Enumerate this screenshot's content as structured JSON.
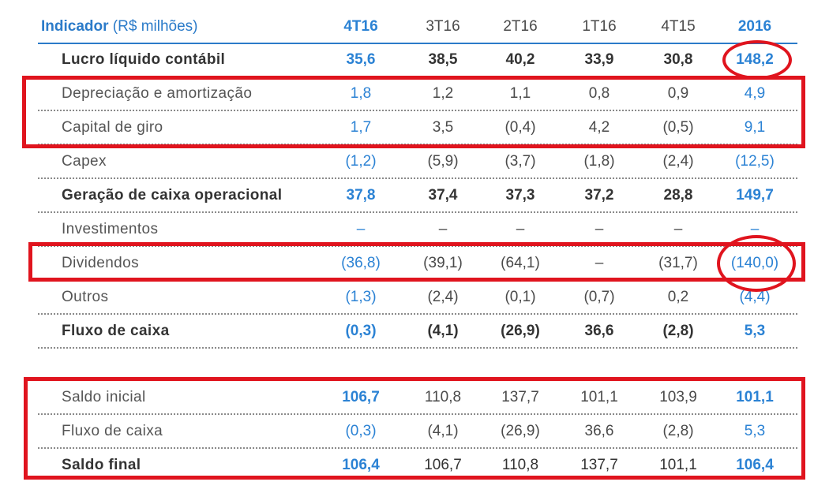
{
  "header": {
    "label": "Indicador",
    "unit": "(R$ milhões)",
    "columns": [
      "4T16",
      "3T16",
      "2T16",
      "1T16",
      "4T15",
      "2016"
    ]
  },
  "rows": [
    {
      "label": "Lucro líquido contábil",
      "values": [
        "35,6",
        "38,5",
        "40,2",
        "33,9",
        "30,8",
        "148,2"
      ]
    },
    {
      "label": "Depreciação e amortização",
      "values": [
        "1,8",
        "1,2",
        "1,1",
        "0,8",
        "0,9",
        "4,9"
      ]
    },
    {
      "label": "Capital de giro",
      "values": [
        "1,7",
        "3,5",
        "(0,4)",
        "4,2",
        "(0,5)",
        "9,1"
      ]
    },
    {
      "label": "Capex",
      "values": [
        "(1,2)",
        "(5,9)",
        "(3,7)",
        "(1,8)",
        "(2,4)",
        "(12,5)"
      ]
    },
    {
      "label": "Geração de caixa operacional",
      "values": [
        "37,8",
        "37,4",
        "37,3",
        "37,2",
        "28,8",
        "149,7"
      ]
    },
    {
      "label": "Investimentos",
      "values": [
        "–",
        "–",
        "–",
        "–",
        "–",
        "–"
      ]
    },
    {
      "label": "Dividendos",
      "values": [
        "(36,8)",
        "(39,1)",
        "(64,1)",
        "–",
        "(31,7)",
        "(140,0)"
      ]
    },
    {
      "label": "Outros",
      "values": [
        "(1,3)",
        "(2,4)",
        "(0,1)",
        "(0,7)",
        "0,2",
        "(4,4)"
      ]
    },
    {
      "label": "Fluxo de caixa",
      "values": [
        "(0,3)",
        "(4,1)",
        "(26,9)",
        "36,6",
        "(2,8)",
        "5,3"
      ]
    },
    {
      "label": "Saldo inicial",
      "values": [
        "106,7",
        "110,8",
        "137,7",
        "101,1",
        "103,9",
        "101,1"
      ]
    },
    {
      "label": "Fluxo de caixa",
      "values": [
        "(0,3)",
        "(4,1)",
        "(26,9)",
        "36,6",
        "(2,8)",
        "5,3"
      ]
    },
    {
      "label": "Saldo final",
      "values": [
        "106,4",
        "106,7",
        "110,8",
        "137,7",
        "101,1",
        "106,4"
      ]
    }
  ],
  "colors": {
    "accent_blue": "#2b82d4",
    "highlight_red": "#e0141e",
    "text_gray": "#4a4a4a"
  }
}
